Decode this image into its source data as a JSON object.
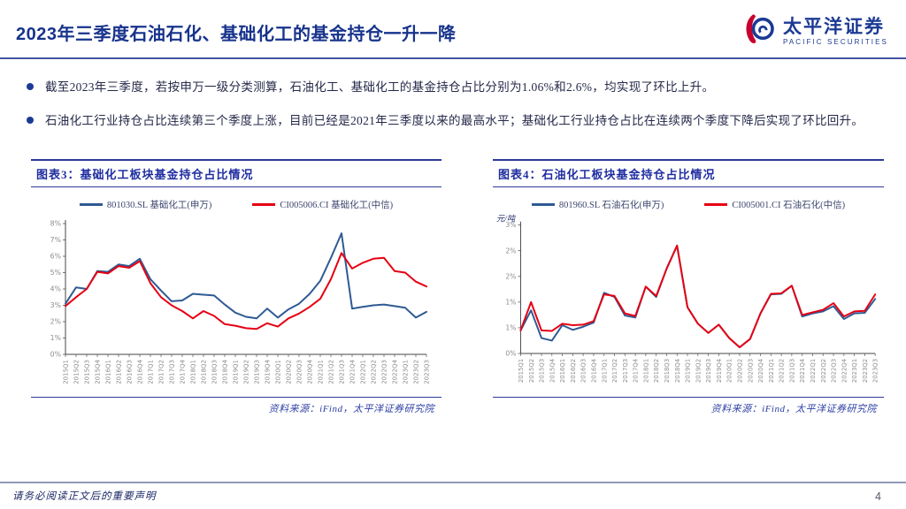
{
  "header": {
    "title": "2023年三季度石油石化、基础化工的基金持仓一升一降",
    "logo": {
      "cn": "太平洋证券",
      "en": "PACIFIC SECURITIES"
    }
  },
  "bullets": [
    "截至2023年三季度，若按申万一级分类测算，石油化工、基础化工的基金持仓占比分别为1.06%和2.6%，均实现了环比上升。",
    "石油化工行业持仓占比连续第三个季度上涨，目前已经是2021年三季度以来的最高水平；基础化工行业持仓占比在连续两个季度下降后实现了环比回升。"
  ],
  "figures": [
    {
      "caption": "图表3：基础化工板块基金持仓占比情况",
      "source": "资料来源：iFind，太平洋证券研究院"
    },
    {
      "caption": "图表4：石油化工板块基金持仓占比情况",
      "source": "资料来源：iFind，太平洋证券研究院"
    }
  ],
  "footer": {
    "disclaimer": "请务必阅读正文后的重要声明",
    "page": "4"
  },
  "colors": {
    "swm_blue": "#2f5a93",
    "citic_red": "#e60012",
    "accent_navy": "#1b3a94"
  },
  "chart_data": [
    {
      "type": "line",
      "title": "图表3：基础化工板块基金持仓占比情况",
      "xlabel": "",
      "ylabel": "",
      "ylim": [
        0,
        8
      ],
      "y_tick_step": 1,
      "y_tick_labels": [
        "0%",
        "1%",
        "2%",
        "3%",
        "4%",
        "5%",
        "6%",
        "7%",
        "8%"
      ],
      "grid": false,
      "legend_position": "top",
      "categories": [
        "2015Q1",
        "2015Q2",
        "2015Q3",
        "2015Q4",
        "2016Q1",
        "2016Q2",
        "2016Q3",
        "2016Q4",
        "2017Q1",
        "2017Q2",
        "2017Q3",
        "2017Q4",
        "2018Q1",
        "2018Q2",
        "2018Q3",
        "2018Q4",
        "2019Q1",
        "2019Q2",
        "2019Q3",
        "2019Q4",
        "2020Q1",
        "2020Q2",
        "2020Q3",
        "2020Q4",
        "2021Q1",
        "2021Q2",
        "2021Q3",
        "2021Q4",
        "2022Q1",
        "2022Q2",
        "2022Q3",
        "2022Q4",
        "2023Q1",
        "2023Q2",
        "2023Q3"
      ],
      "series": [
        {
          "name": "801030.SL 基础化工(申万)",
          "color": "#2f5a93",
          "values": [
            3.1,
            4.1,
            4.0,
            5.1,
            5.05,
            5.5,
            5.4,
            5.85,
            4.6,
            3.9,
            3.25,
            3.3,
            3.7,
            3.65,
            3.6,
            3.05,
            2.55,
            2.3,
            2.2,
            2.8,
            2.25,
            2.75,
            3.1,
            3.7,
            4.5,
            5.9,
            7.4,
            2.8,
            2.9,
            3.0,
            3.05,
            2.95,
            2.85,
            2.25,
            2.6
          ]
        },
        {
          "name": "CI005006.CI 基础化工(中信)",
          "color": "#e60012",
          "values": [
            2.95,
            3.5,
            4.0,
            5.05,
            4.95,
            5.4,
            5.3,
            5.7,
            4.35,
            3.5,
            3.0,
            2.65,
            2.2,
            2.65,
            2.35,
            1.85,
            1.75,
            1.6,
            1.55,
            1.9,
            1.7,
            2.2,
            2.5,
            2.9,
            3.4,
            4.6,
            6.2,
            5.25,
            5.6,
            5.85,
            5.9,
            5.1,
            5.0,
            4.45,
            4.15
          ]
        }
      ]
    },
    {
      "type": "line",
      "title": "图表4：石油化工板块基金持仓占比情况",
      "xlabel": "",
      "ylabel": "元/吨",
      "ylim": [
        0,
        2.5
      ],
      "y_tick_step": 0.5,
      "y_tick_labels": [
        "0%",
        "1%",
        "1%",
        "2%",
        "2%",
        "3%"
      ],
      "grid": false,
      "legend_position": "top",
      "categories": [
        "2015Q1",
        "2015Q2",
        "2015Q3",
        "2015Q4",
        "2016Q1",
        "2016Q2",
        "2016Q3",
        "2016Q4",
        "2017Q1",
        "2017Q2",
        "2017Q3",
        "2017Q4",
        "2018Q1",
        "2018Q2",
        "2018Q3",
        "2018Q4",
        "2019Q1",
        "2019Q2",
        "2019Q3",
        "2019Q4",
        "2020Q1",
        "2020Q2",
        "2020Q3",
        "2020Q4",
        "2021Q1",
        "2021Q2",
        "2021Q3",
        "2021Q4",
        "2022Q1",
        "2022Q2",
        "2022Q3",
        "2022Q4",
        "2023Q1",
        "2023Q2",
        "2023Q3"
      ],
      "series": [
        {
          "name": "801960.SL 石油石化(申万)",
          "color": "#2f5a93",
          "values": [
            0.45,
            0.84,
            0.3,
            0.25,
            0.55,
            0.46,
            0.52,
            0.6,
            1.18,
            1.1,
            0.74,
            0.7,
            1.3,
            1.1,
            1.65,
            2.1,
            0.9,
            0.58,
            0.4,
            0.56,
            0.3,
            0.12,
            0.28,
            0.78,
            1.15,
            1.16,
            1.32,
            0.72,
            0.78,
            0.82,
            0.92,
            0.67,
            0.78,
            0.79,
            1.06
          ]
        },
        {
          "name": "CI005001.CI 石油石化(中信)",
          "color": "#e60012",
          "values": [
            0.45,
            1.0,
            0.45,
            0.44,
            0.58,
            0.55,
            0.56,
            0.63,
            1.15,
            1.12,
            0.78,
            0.73,
            1.3,
            1.12,
            1.65,
            2.1,
            0.9,
            0.58,
            0.4,
            0.56,
            0.3,
            0.12,
            0.28,
            0.78,
            1.16,
            1.17,
            1.32,
            0.75,
            0.8,
            0.85,
            0.98,
            0.72,
            0.82,
            0.83,
            1.15
          ]
        }
      ]
    }
  ]
}
